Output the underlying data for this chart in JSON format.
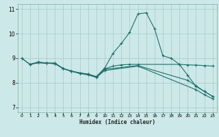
{
  "title": "",
  "xlabel": "Humidex (Indice chaleur)",
  "xlim": [
    -0.5,
    23.5
  ],
  "ylim": [
    6.8,
    11.2
  ],
  "yticks": [
    7,
    8,
    9,
    10,
    11
  ],
  "xticks": [
    0,
    1,
    2,
    3,
    4,
    5,
    6,
    7,
    8,
    9,
    10,
    11,
    12,
    13,
    14,
    15,
    16,
    17,
    18,
    19,
    20,
    21,
    22,
    23
  ],
  "bg_color": "#cde8e8",
  "line_color": "#1a6e6a",
  "grid_color": "#aacece",
  "lines": [
    {
      "x": [
        0,
        1,
        2,
        3,
        4,
        5,
        6,
        7,
        8,
        9,
        10,
        11,
        12,
        13,
        14,
        15,
        16,
        17,
        18,
        19,
        20,
        21,
        22,
        23
      ],
      "y": [
        9.0,
        8.75,
        8.85,
        8.8,
        8.8,
        8.58,
        8.48,
        8.4,
        8.35,
        8.25,
        8.6,
        9.2,
        9.6,
        10.05,
        10.8,
        10.85,
        10.2,
        9.1,
        9.0,
        8.75,
        8.3,
        7.85,
        7.65,
        7.45
      ]
    },
    {
      "x": [
        0,
        1,
        2,
        3,
        4,
        5,
        6,
        7,
        8,
        9,
        10,
        11,
        12,
        13,
        14,
        19,
        20,
        21,
        22,
        23
      ],
      "y": [
        9.0,
        8.75,
        8.82,
        8.8,
        8.8,
        8.58,
        8.47,
        8.4,
        8.35,
        8.25,
        8.57,
        8.68,
        8.73,
        8.75,
        8.75,
        8.75,
        8.73,
        8.72,
        8.7,
        8.68
      ]
    },
    {
      "x": [
        1,
        2,
        3,
        4,
        5,
        6,
        7,
        8,
        9,
        10,
        14,
        20,
        21,
        22,
        23
      ],
      "y": [
        8.75,
        8.82,
        8.8,
        8.78,
        8.58,
        8.47,
        8.4,
        8.35,
        8.25,
        8.55,
        8.7,
        8.1,
        7.88,
        7.65,
        7.45
      ]
    },
    {
      "x": [
        1,
        2,
        3,
        4,
        5,
        6,
        7,
        8,
        9,
        10,
        14,
        21,
        22,
        23
      ],
      "y": [
        8.75,
        8.82,
        8.8,
        8.78,
        8.58,
        8.47,
        8.38,
        8.32,
        8.22,
        8.5,
        8.68,
        7.72,
        7.52,
        7.35
      ]
    }
  ]
}
